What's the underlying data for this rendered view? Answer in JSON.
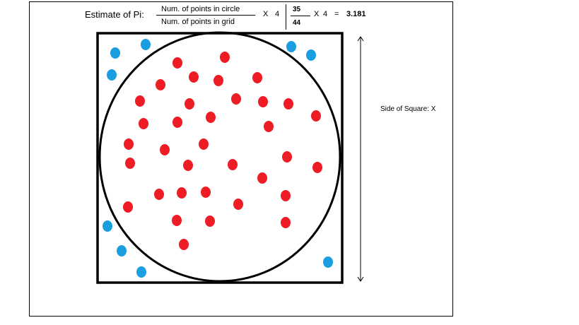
{
  "formula": {
    "label": "Estimate of Pi:",
    "numerator": "Num. of points in circle",
    "denominator": "Num. of points in grid",
    "times_symbol": "X",
    "multiplier": "4",
    "inside_count": "35",
    "total_count": "44",
    "equals": "=",
    "result": "3.181"
  },
  "side_label": "Side of Square: X",
  "colors": {
    "inside_point": "#ee1c24",
    "outside_point": "#1a9ee0",
    "outline": "#000000"
  },
  "points": {
    "inside_count": 35,
    "outside_count": 9
  }
}
